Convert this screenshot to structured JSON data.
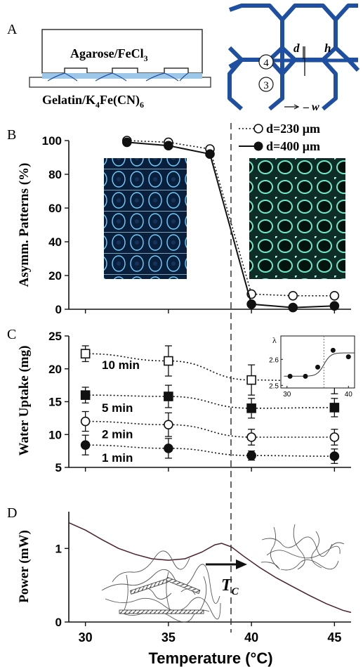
{
  "panel_a": {
    "label": "A",
    "top_gel": "Agarose/FeCl",
    "top_gel_sub": "3",
    "bottom_gel_1": "Gelatin/K",
    "bottom_gel_sub1": "4",
    "bottom_gel_2": "Fe(CN)",
    "bottom_gel_sub2": "6",
    "lattice_d": "d",
    "lattice_h": "h",
    "lattice_w": "w",
    "node_4": "4",
    "node_3": "3",
    "colors": {
      "lattice": "#1f4fa0",
      "gel_band": "#9cc7e8"
    }
  },
  "chart_data": [
    {
      "panel": "B",
      "type": "line",
      "ylabel": "Asymm. Patterns (%)",
      "ylim": [
        0,
        100
      ],
      "yticks": [
        "0",
        "20",
        "40",
        "60",
        "80",
        "100"
      ],
      "xlim": [
        29,
        46
      ],
      "series": [
        {
          "name": "d=230 μm",
          "marker": "open-circle",
          "line": "dotted",
          "points": [
            [
              32.5,
              100
            ],
            [
              35,
              99
            ],
            [
              37.5,
              95
            ],
            [
              40,
              9
            ],
            [
              42.5,
              8
            ],
            [
              45,
              8
            ]
          ]
        },
        {
          "name": "d=400 μm",
          "marker": "filled-circle",
          "line": "solid",
          "points": [
            [
              32.5,
              99
            ],
            [
              35,
              97
            ],
            [
              37.5,
              92
            ],
            [
              40,
              3
            ],
            [
              42.5,
              1
            ],
            [
              45,
              2
            ]
          ]
        }
      ],
      "legend_placement": "top-right",
      "insets": [
        "left micrograph (blue lattice)",
        "right micrograph (green lattice)"
      ]
    },
    {
      "panel": "C",
      "type": "line",
      "ylabel": "Water Uptake (mg)",
      "ylim": [
        5,
        25
      ],
      "yticks": [
        "5",
        "10",
        "15",
        "20",
        "25"
      ],
      "xlim": [
        29,
        46
      ],
      "series": [
        {
          "name": "10 min",
          "marker": "open-square",
          "x": [
            30,
            35,
            40,
            45
          ],
          "values": [
            22.3,
            21.2,
            18.3,
            18.0
          ],
          "err": [
            1.2,
            2.3,
            2.3,
            1.8
          ]
        },
        {
          "name": "5 min",
          "marker": "filled-square",
          "x": [
            30,
            35,
            40,
            45
          ],
          "values": [
            16.0,
            15.8,
            14.0,
            14.1
          ],
          "err": [
            1.2,
            1.7,
            1.5,
            1.4
          ]
        },
        {
          "name": "2 min",
          "marker": "open-circle",
          "x": [
            30,
            35,
            40,
            45
          ],
          "values": [
            12.0,
            11.5,
            9.6,
            9.6
          ],
          "err": [
            1.5,
            1.8,
            1.2,
            1.2
          ]
        },
        {
          "name": "1 min",
          "marker": "filled-circle",
          "x": [
            30,
            35,
            40,
            45
          ],
          "values": [
            8.4,
            7.9,
            6.8,
            6.7
          ],
          "err": [
            1.5,
            1.5,
            0.7,
            1.1
          ]
        }
      ],
      "inset": {
        "ylabel": "λ",
        "xticks": [
          "30",
          "40"
        ],
        "yticks": [
          "2.5",
          "2.6"
        ],
        "xlim": [
          29,
          41
        ],
        "ylim": [
          2.49,
          2.69
        ],
        "points": [
          [
            30.5,
            2.535
          ],
          [
            33,
            2.535
          ],
          [
            35,
            2.57
          ],
          [
            37.5,
            2.635
          ],
          [
            40,
            2.61
          ]
        ]
      }
    },
    {
      "panel": "D",
      "type": "line",
      "ylabel": "Power (mW)",
      "xlabel": "Temperature (°C)",
      "xticks": [
        "30",
        "35",
        "40",
        "45"
      ],
      "yticks": [
        "0",
        "1"
      ],
      "xlim": [
        29,
        46
      ],
      "ylim": [
        0,
        1.5
      ],
      "series": [
        {
          "color": "#4a2030",
          "points": [
            [
              29,
              1.35
            ],
            [
              30,
              1.25
            ],
            [
              31,
              1.12
            ],
            [
              32,
              1.0
            ],
            [
              33,
              0.92
            ],
            [
              34,
              0.86
            ],
            [
              35,
              0.84
            ],
            [
              36,
              0.86
            ],
            [
              37,
              0.95
            ],
            [
              37.8,
              1.05
            ],
            [
              38.2,
              1.07
            ],
            [
              38.8,
              1.02
            ],
            [
              39.5,
              0.9
            ],
            [
              40.5,
              0.74
            ],
            [
              41.5,
              0.6
            ],
            [
              42.5,
              0.48
            ],
            [
              43.5,
              0.36
            ],
            [
              44.5,
              0.25
            ],
            [
              45.5,
              0.16
            ],
            [
              46,
              0.13
            ]
          ]
        }
      ],
      "transition_label": "T",
      "transition_sub": "C",
      "transition_temp": 38.5
    }
  ],
  "labels": {
    "panel_b": "B",
    "panel_c": "C",
    "panel_d": "D",
    "legend_b1": "d=230 μm",
    "legend_b2": "d=400 μm",
    "c_series": [
      "10 min",
      "5 min",
      "2 min",
      "1 min"
    ]
  }
}
